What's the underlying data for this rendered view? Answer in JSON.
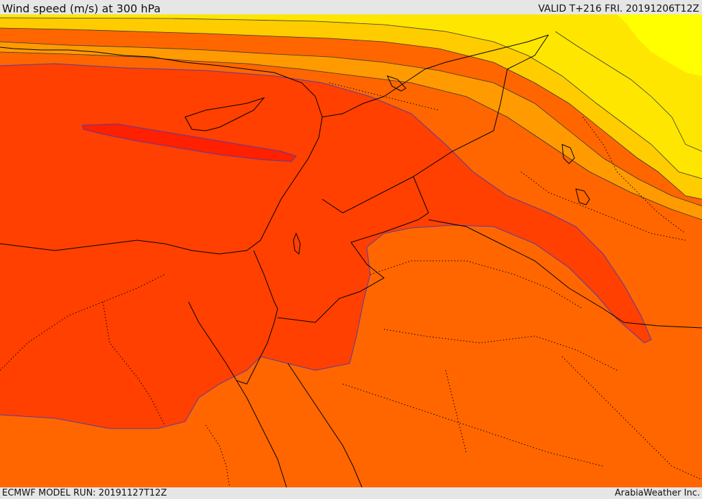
{
  "header": {
    "title": "Wind speed (m/s) at 300 hPa",
    "valid_time": "VALID T+216 FRI. 20191206T12Z"
  },
  "footer": {
    "model_run": "ECMWF MODEL RUN: 20191127T12Z",
    "credit": "ArabiaWeather Inc."
  },
  "map": {
    "parameter": "wind speed",
    "units": "m/s",
    "level": "300 hPa",
    "colors": {
      "level_lowest": "#ffff00",
      "level_2": "#ffe600",
      "level_3": "#ffcc00",
      "level_4": "#ffb300",
      "level_5": "#ff9a00",
      "level_6": "#ff8000",
      "level_7": "#ff6600",
      "level_8": "#ff4000",
      "level_highest": "#ff2000",
      "contour_line": "#333333",
      "jet_edge": "#5a3aa0",
      "coastline": "#000000",
      "border": "#000000"
    }
  }
}
